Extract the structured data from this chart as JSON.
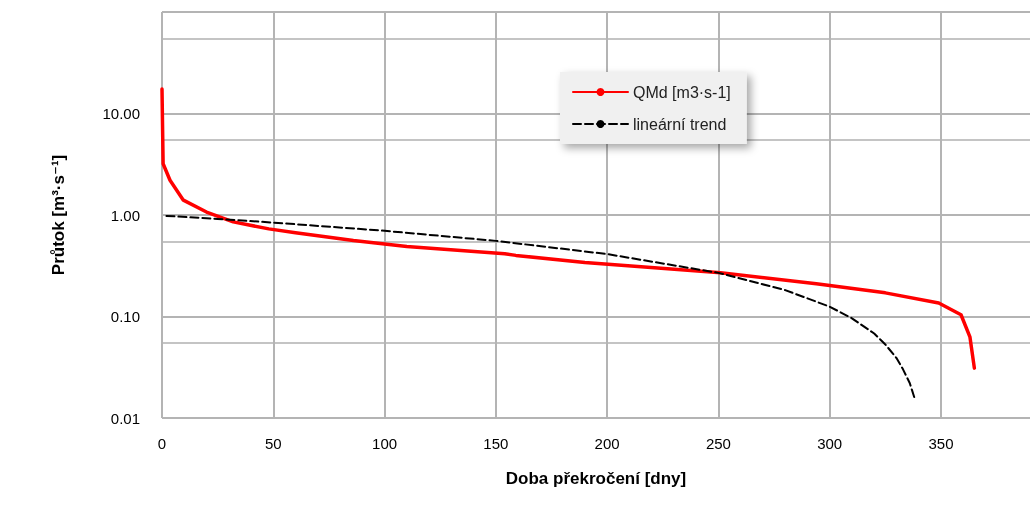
{
  "chart_data": {
    "type": "line",
    "xlabel": "Doba překročení [dny]",
    "ylabel": "Průtok [m³·s⁻¹]",
    "log": "y",
    "grid": true,
    "legend": "top",
    "marker": "none",
    "xlim": [
      0,
      390
    ],
    "xticks": [
      0,
      50,
      100,
      150,
      200,
      250,
      300,
      350
    ],
    "ylim": [
      0.01,
      100
    ],
    "yticks": [
      {
        "value": 0.01,
        "label": "0.01"
      },
      {
        "value": 0.1,
        "label": "0.10"
      },
      {
        "value": 1,
        "label": "1.00"
      },
      {
        "value": 10,
        "label": "10.00"
      },
      {
        "value": 100,
        "label": null
      }
    ],
    "series": [
      {
        "name": "QMd [m3·s-1]",
        "color": "#ff0000",
        "line_style": "solid",
        "x": [
          0,
          0.5,
          3.6,
          9.6,
          20,
          32,
          48,
          60,
          86,
          110,
          154,
          159,
          190,
          251,
          294,
          325,
          349,
          359,
          363,
          365
        ],
        "values": [
          17.4,
          3.2,
          2.2,
          1.4,
          1.07,
          0.855,
          0.73,
          0.67,
          0.56,
          0.49,
          0.415,
          0.4,
          0.34,
          0.27,
          0.21,
          0.171,
          0.136,
          0.104,
          0.063,
          0.031
        ]
      },
      {
        "name": "lineární trend",
        "color": "#000000",
        "line_style": "dashed",
        "x": [
          2,
          25,
          50,
          100,
          150,
          200,
          250,
          280,
          300,
          310,
          320,
          325,
          330,
          333,
          336,
          338
        ],
        "values": [
          0.98,
          0.914,
          0.842,
          0.699,
          0.556,
          0.412,
          0.269,
          0.182,
          0.125,
          0.096,
          0.068,
          0.053,
          0.039,
          0.03,
          0.022,
          0.016
        ]
      }
    ]
  }
}
